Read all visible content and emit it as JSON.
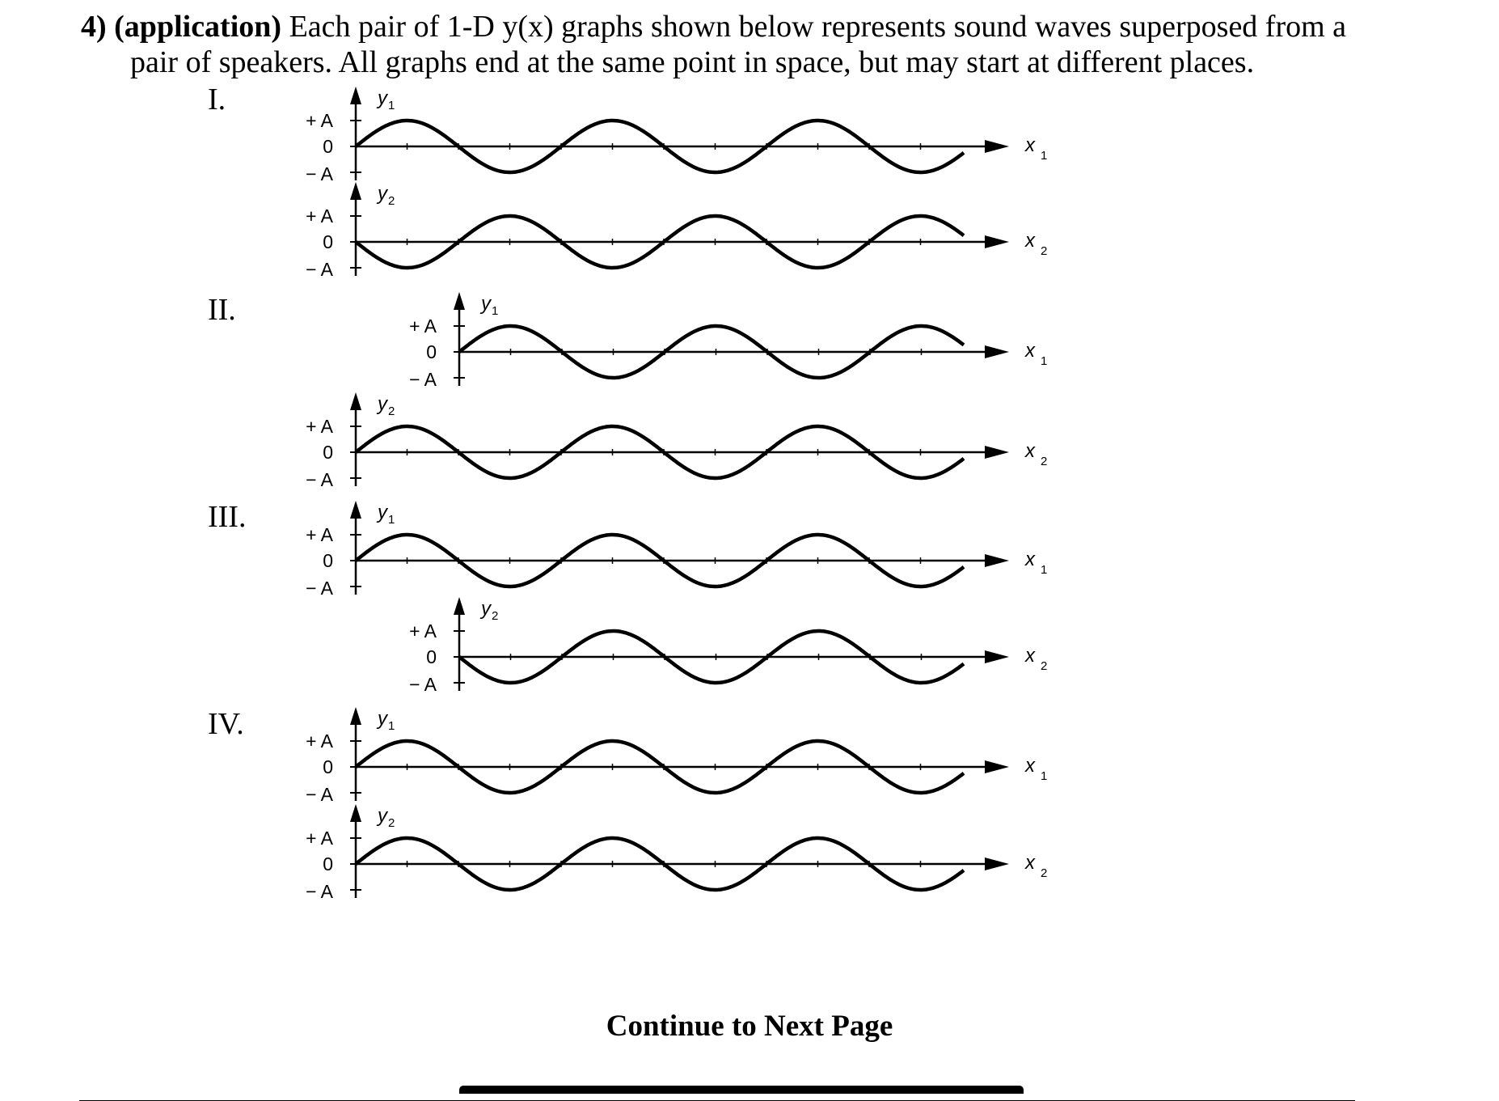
{
  "question": {
    "number": "4)",
    "tag": "(application)",
    "line1_rest": " Each pair of 1-D y(x) graphs shown below represents sound waves superposed from a",
    "line2": "pair of speakers.  All graphs end at the same point in space, but may start at different places."
  },
  "axis_text": {
    "plus_a": "+ A",
    "zero": "0",
    "minus_a": "− A",
    "y": "y",
    "x": "x",
    "sub1": "1",
    "sub2": "2"
  },
  "panels": [
    {
      "label": "I.",
      "graphs": [
        {
          "y_name": "1",
          "x_name": "1",
          "start_phase": "0",
          "initial_direction": "up",
          "wave_style": "sine"
        },
        {
          "y_name": "2",
          "x_name": "2",
          "start_phase": "0",
          "initial_direction": "down",
          "wave_style": "sine"
        }
      ]
    },
    {
      "label": "II.",
      "graphs": [
        {
          "y_name": "1",
          "x_name": "1",
          "start_phase": "0",
          "initial_direction": "up",
          "wave_style": "sine"
        },
        {
          "y_name": "2",
          "x_name": "2",
          "start_phase": "0",
          "initial_direction": "up",
          "wave_style": "sine"
        }
      ]
    },
    {
      "label": "III.",
      "graphs": [
        {
          "y_name": "1",
          "x_name": "1",
          "start_phase": "0",
          "initial_direction": "up",
          "wave_style": "sine"
        },
        {
          "y_name": "2",
          "x_name": "2",
          "start_phase": "0",
          "initial_direction": "down",
          "wave_style": "sine"
        }
      ]
    },
    {
      "label": "IV.",
      "graphs": [
        {
          "y_name": "1",
          "x_name": "1",
          "start_phase": "0",
          "initial_direction": "up",
          "wave_style": "sine"
        },
        {
          "y_name": "2",
          "x_name": "2",
          "start_phase": "0",
          "initial_direction": "up",
          "wave_style": "sine"
        }
      ]
    }
  ],
  "footer": {
    "continue": "Continue to Next Page"
  }
}
